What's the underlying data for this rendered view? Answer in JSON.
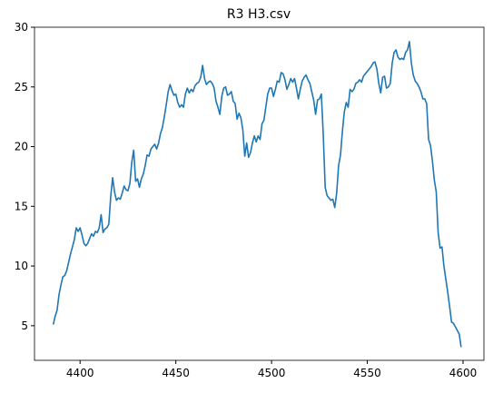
{
  "chart_data": {
    "type": "line",
    "title": "R3 H3.csv",
    "x": [
      4386,
      4387,
      4388,
      4389,
      4390,
      4391,
      4392,
      4393,
      4394,
      4395,
      4396,
      4397,
      4398,
      4399,
      4400,
      4401,
      4402,
      4403,
      4404,
      4405,
      4406,
      4407,
      4408,
      4409,
      4410,
      4411,
      4412,
      4413,
      4414,
      4415,
      4416,
      4417,
      4418,
      4419,
      4420,
      4421,
      4422,
      4423,
      4424,
      4425,
      4426,
      4427,
      4428,
      4429,
      4430,
      4431,
      4432,
      4433,
      4434,
      4435,
      4436,
      4437,
      4438,
      4439,
      4440,
      4441,
      4442,
      4443,
      4444,
      4445,
      4446,
      4447,
      4448,
      4449,
      4450,
      4451,
      4452,
      4453,
      4454,
      4455,
      4456,
      4457,
      4458,
      4459,
      4460,
      4461,
      4462,
      4463,
      4464,
      4465,
      4466,
      4467,
      4468,
      4469,
      4470,
      4471,
      4472,
      4473,
      4474,
      4475,
      4476,
      4477,
      4478,
      4479,
      4480,
      4481,
      4482,
      4483,
      4484,
      4485,
      4486,
      4487,
      4488,
      4489,
      4490,
      4491,
      4492,
      4493,
      4494,
      4495,
      4496,
      4497,
      4498,
      4499,
      4500,
      4501,
      4502,
      4503,
      4504,
      4505,
      4506,
      4507,
      4508,
      4509,
      4510,
      4511,
      4512,
      4513,
      4514,
      4515,
      4516,
      4517,
      4518,
      4519,
      4520,
      4521,
      4522,
      4523,
      4524,
      4525,
      4526,
      4527,
      4528,
      4529,
      4530,
      4531,
      4532,
      4533,
      4534,
      4535,
      4536,
      4537,
      4538,
      4539,
      4540,
      4541,
      4542,
      4543,
      4544,
      4545,
      4546,
      4547,
      4548,
      4549,
      4550,
      4551,
      4552,
      4553,
      4554,
      4555,
      4556,
      4557,
      4558,
      4559,
      4560,
      4561,
      4562,
      4563,
      4564,
      4565,
      4566,
      4567,
      4568,
      4569,
      4570,
      4571,
      4572,
      4573,
      4574,
      4575,
      4576,
      4577,
      4578,
      4579,
      4580,
      4581,
      4582,
      4583,
      4584,
      4585,
      4586,
      4587,
      4588,
      4589,
      4590,
      4591,
      4592,
      4593,
      4594,
      4595,
      4596,
      4597,
      4598,
      4599
    ],
    "series": [
      {
        "color": "#1f77b4",
        "values": [
          5.1,
          5.8,
          6.3,
          7.6,
          8.4,
          9.1,
          9.2,
          9.6,
          10.3,
          11.0,
          11.6,
          12.2,
          13.2,
          12.9,
          13.2,
          12.6,
          11.9,
          11.7,
          11.9,
          12.3,
          12.7,
          12.5,
          12.9,
          12.8,
          13.2,
          14.3,
          12.8,
          13.1,
          13.2,
          13.5,
          15.8,
          17.4,
          16.2,
          15.5,
          15.7,
          15.6,
          16.1,
          16.7,
          16.4,
          16.3,
          16.9,
          18.7,
          19.7,
          17.1,
          17.3,
          16.6,
          17.3,
          17.7,
          18.4,
          19.3,
          19.2,
          19.8,
          20.0,
          20.2,
          19.8,
          20.3,
          21.1,
          21.6,
          22.5,
          23.5,
          24.6,
          25.2,
          24.7,
          24.3,
          24.4,
          23.7,
          23.3,
          23.5,
          23.3,
          24.4,
          24.9,
          24.5,
          24.8,
          24.6,
          25.1,
          25.3,
          25.4,
          25.8,
          26.8,
          25.7,
          25.2,
          25.4,
          25.5,
          25.3,
          24.9,
          23.8,
          23.3,
          22.7,
          24.2,
          24.9,
          25.0,
          24.3,
          24.4,
          24.6,
          23.8,
          23.6,
          22.3,
          22.8,
          22.4,
          21.4,
          19.2,
          20.3,
          19.1,
          19.5,
          20.3,
          20.9,
          20.4,
          20.9,
          20.6,
          21.9,
          22.2,
          23.3,
          24.4,
          24.9,
          24.9,
          24.2,
          24.8,
          25.5,
          25.4,
          26.2,
          26.1,
          25.6,
          24.8,
          25.2,
          25.7,
          25.4,
          25.7,
          24.9,
          24.0,
          24.8,
          25.5,
          25.8,
          26.0,
          25.6,
          25.3,
          24.6,
          23.9,
          22.7,
          23.9,
          24.0,
          24.4,
          21.0,
          16.6,
          15.9,
          15.7,
          15.5,
          15.6,
          14.9,
          16.1,
          18.4,
          19.3,
          21.3,
          22.9,
          23.7,
          23.3,
          24.8,
          24.6,
          24.8,
          25.3,
          25.4,
          25.6,
          25.4,
          25.9,
          26.1,
          26.3,
          26.5,
          26.7,
          27.0,
          27.1,
          26.5,
          25.3,
          24.5,
          25.8,
          25.9,
          24.9,
          25.0,
          25.3,
          27.0,
          27.9,
          28.1,
          27.5,
          27.3,
          27.4,
          27.3,
          27.9,
          28.1,
          28.8,
          27.0,
          26.0,
          25.5,
          25.3,
          25.0,
          24.6,
          24.0,
          24.0,
          23.6,
          20.6,
          20.1,
          18.8,
          17.2,
          16.2,
          12.8,
          11.5,
          11.6,
          10.0,
          8.9,
          7.8,
          6.6,
          5.3,
          5.2,
          4.9,
          4.6,
          4.3,
          3.2
        ]
      }
    ],
    "xlim": [
      4376.2,
      4610.9
    ],
    "xticks": [
      4400,
      4450,
      4500,
      4550,
      4600
    ],
    "ylim": [
      2.1,
      30
    ],
    "yticks": [
      5,
      10,
      15,
      20,
      25,
      30
    ]
  }
}
